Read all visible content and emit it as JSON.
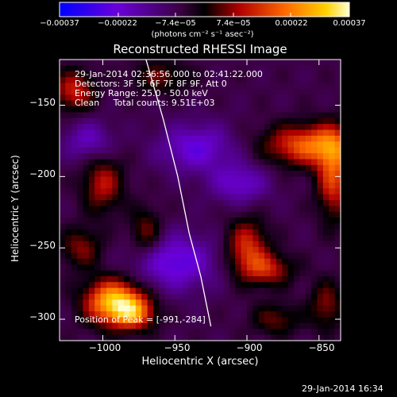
{
  "chart_data": {
    "type": "heatmap",
    "title": "Reconstructed RHESSI Image",
    "xlabel": "Heliocentric X (arcsec)",
    "ylabel": "Heliocentric Y (arcsec)",
    "x_ticks": [
      -1000,
      -950,
      -900,
      -850
    ],
    "y_ticks": [
      -150,
      -200,
      -250,
      -300
    ],
    "x_tick_labels": [
      "−1000",
      "−950",
      "−900",
      "−850"
    ],
    "y_tick_labels": [
      "−150",
      "−200",
      "−250",
      "−300"
    ],
    "xlim": [
      -1030,
      -835
    ],
    "ylim": [
      -315,
      -118
    ],
    "grid": false,
    "colorbar": {
      "range": [
        -0.00037,
        0.00037
      ],
      "tick_labels": [
        "−0.00037",
        "−0.00022",
        "−7.4e−05",
        "7.4e−05",
        "0.00022",
        "0.00037"
      ],
      "tick_values": [
        -0.00037,
        -0.00022,
        -7.4e-05,
        7.4e-05,
        0.00022,
        0.00037
      ],
      "units": "(photons cm⁻² s⁻¹ asec⁻²)",
      "colormap": [
        "#0000ff",
        "#6a00d8",
        "#6e006e",
        "#000000",
        "#d40000",
        "#ff6a00",
        "#ffd200",
        "#ffffd0"
      ]
    },
    "annotations": [
      "29-Jan-2014 02:36:56.000 to 02:41:22.000",
      "Detectors: 3F 5F 6F 7F 8F 9F, Att 0",
      "Energy Range: 25.0 - 50.0 keV",
      "Clean     Total counts: 9.51E+03"
    ],
    "peak_text": "Position of Peak = [-991,-284]",
    "peak_position": [
      -991,
      -284
    ],
    "sources": [
      {
        "x": -992,
        "y": -288,
        "amp": 1.0,
        "sx": 14,
        "sy": 11
      },
      {
        "x": -978,
        "y": -296,
        "amp": 0.55,
        "sx": 10,
        "sy": 8
      },
      {
        "x": -855,
        "y": -178,
        "amp": 0.72,
        "sx": 22,
        "sy": 10
      },
      {
        "x": -840,
        "y": -200,
        "amp": 0.6,
        "sx": 8,
        "sy": 20
      },
      {
        "x": -900,
        "y": -250,
        "amp": 0.55,
        "sx": 10,
        "sy": 14
      },
      {
        "x": -885,
        "y": -265,
        "amp": 0.45,
        "sx": 12,
        "sy": 8
      },
      {
        "x": -1020,
        "y": -140,
        "amp": 0.5,
        "sx": 10,
        "sy": 10
      },
      {
        "x": -1000,
        "y": -205,
        "amp": 0.45,
        "sx": 10,
        "sy": 14
      },
      {
        "x": -970,
        "y": -240,
        "amp": 0.38,
        "sx": 8,
        "sy": 12
      },
      {
        "x": -1015,
        "y": -250,
        "amp": 0.35,
        "sx": 10,
        "sy": 10
      },
      {
        "x": -960,
        "y": -130,
        "amp": 0.3,
        "sx": 14,
        "sy": 8
      },
      {
        "x": -880,
        "y": -300,
        "amp": 0.3,
        "sx": 12,
        "sy": 8
      },
      {
        "x": -845,
        "y": -290,
        "amp": 0.35,
        "sx": 8,
        "sy": 12
      },
      {
        "x": -935,
        "y": -180,
        "amp": -0.45,
        "sx": 18,
        "sy": 12
      },
      {
        "x": -950,
        "y": -260,
        "amp": -0.5,
        "sx": 20,
        "sy": 14
      },
      {
        "x": -1010,
        "y": -175,
        "amp": -0.35,
        "sx": 12,
        "sy": 10
      },
      {
        "x": -905,
        "y": -205,
        "amp": -0.4,
        "sx": 14,
        "sy": 10
      }
    ],
    "limb_curve": [
      [
        -970,
        -118
      ],
      [
        -958,
        -160
      ],
      [
        -948,
        -200
      ],
      [
        -940,
        -240
      ],
      [
        -932,
        -270
      ],
      [
        -925,
        -305
      ]
    ]
  },
  "footer_timestamp": "29-Jan-2014 16:34"
}
